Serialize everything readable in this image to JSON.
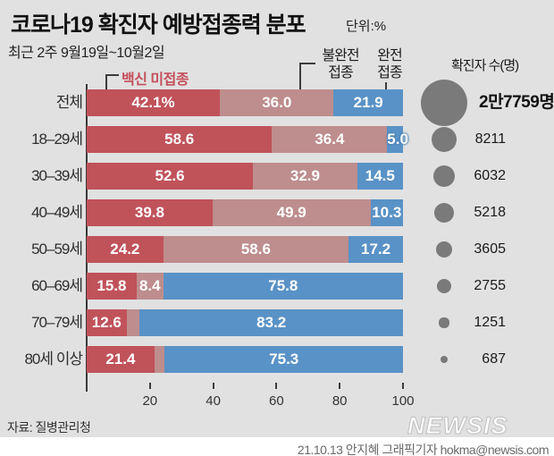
{
  "title": "코로나19 확진자 예방접종력 분포",
  "unit_label": "단위:%",
  "subtitle": "최근 2주 9월19일~10월2일",
  "legend": {
    "unvaccinated": "백신 미접종",
    "partial_line1": "불완전",
    "partial_line2": "접종",
    "full_line1": "완전",
    "full_line2": "접종"
  },
  "right_panel": {
    "header": "확진자 수(명)"
  },
  "colors": {
    "background": "#e1e1e1",
    "unvaccinated": "#c0525a",
    "partial": "#be8d8d",
    "full": "#5992c6",
    "circle": "#7a7a7a",
    "legend_red": "#c4505c"
  },
  "chart_data": {
    "type": "bar",
    "stacked": true,
    "orientation": "horizontal",
    "title": "코로나19 확진자 예방접종력 분포",
    "unit": "%",
    "period": "최근 2주 9월19일~10월2일",
    "xlim": [
      0,
      100
    ],
    "x_ticks": [
      20,
      40,
      60,
      80,
      100
    ],
    "categories": [
      "전체",
      "18–29세",
      "30–39세",
      "40–49세",
      "50–59세",
      "60–69세",
      "70–79세",
      "80세 이상"
    ],
    "series": [
      {
        "name": "백신 미접종",
        "values": [
          42.1,
          58.6,
          52.6,
          39.8,
          24.2,
          15.8,
          12.6,
          21.4
        ]
      },
      {
        "name": "불완전 접종",
        "values": [
          36.0,
          36.4,
          32.9,
          49.9,
          58.6,
          8.4,
          4.2,
          3.3
        ]
      },
      {
        "name": "완전 접종",
        "values": [
          21.9,
          5.0,
          14.5,
          10.3,
          17.2,
          75.8,
          83.2,
          75.3
        ]
      }
    ],
    "labels": [
      [
        "42.1%",
        "36.0",
        "21.9"
      ],
      [
        "58.6",
        "36.4",
        "5.0"
      ],
      [
        "52.6",
        "32.9",
        "14.5"
      ],
      [
        "39.8",
        "49.9",
        "10.3"
      ],
      [
        "24.2",
        "58.6",
        "17.2"
      ],
      [
        "15.8",
        "8.4",
        "75.8"
      ],
      [
        "12.6",
        "",
        "83.2"
      ],
      [
        "21.4",
        "",
        "75.3"
      ]
    ],
    "case_counts": {
      "header": "확진자 수(명)",
      "labels": [
        "2만7759명",
        "8211",
        "6032",
        "5218",
        "3605",
        "2755",
        "1251",
        "687"
      ],
      "values": [
        27759,
        8211,
        6032,
        5218,
        3605,
        2755,
        1251,
        687
      ]
    }
  },
  "footer": {
    "source": "자료: 질병관리청",
    "logo": "NEWSIS",
    "credit": "21.10.13 안지혜 그래픽기자 hokma@newsis.com"
  }
}
